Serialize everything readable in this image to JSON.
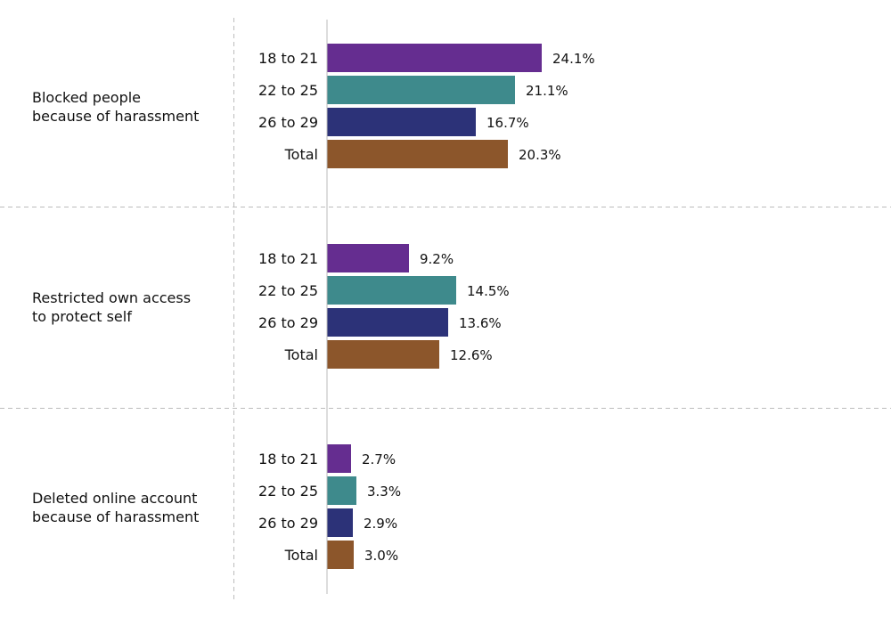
{
  "chart_data": {
    "type": "bar",
    "orientation": "horizontal",
    "xlim": [
      0,
      25
    ],
    "grid": false,
    "value_suffix": "%",
    "categories": [
      "18 to 21",
      "22 to 25",
      "26 to 29",
      "Total"
    ],
    "colors": [
      "#652d90",
      "#3e8a8c",
      "#2c3278",
      "#8c562b"
    ],
    "groups": [
      {
        "label_lines": [
          "Blocked people",
          "because of harassment"
        ],
        "values": [
          24.1,
          21.1,
          16.7,
          20.3
        ],
        "labels": [
          "24.1%",
          "21.1%",
          "16.7%",
          "20.3%"
        ]
      },
      {
        "label_lines": [
          "Restricted own access",
          "to protect self"
        ],
        "values": [
          9.2,
          14.5,
          13.6,
          12.6
        ],
        "labels": [
          "9.2%",
          "14.5%",
          "13.6%",
          "12.6%"
        ]
      },
      {
        "label_lines": [
          "Deleted online account",
          "because of harassment"
        ],
        "values": [
          2.7,
          3.3,
          2.9,
          3.0
        ],
        "labels": [
          "2.7%",
          "3.3%",
          "2.9%",
          "3.0%"
        ]
      }
    ]
  }
}
